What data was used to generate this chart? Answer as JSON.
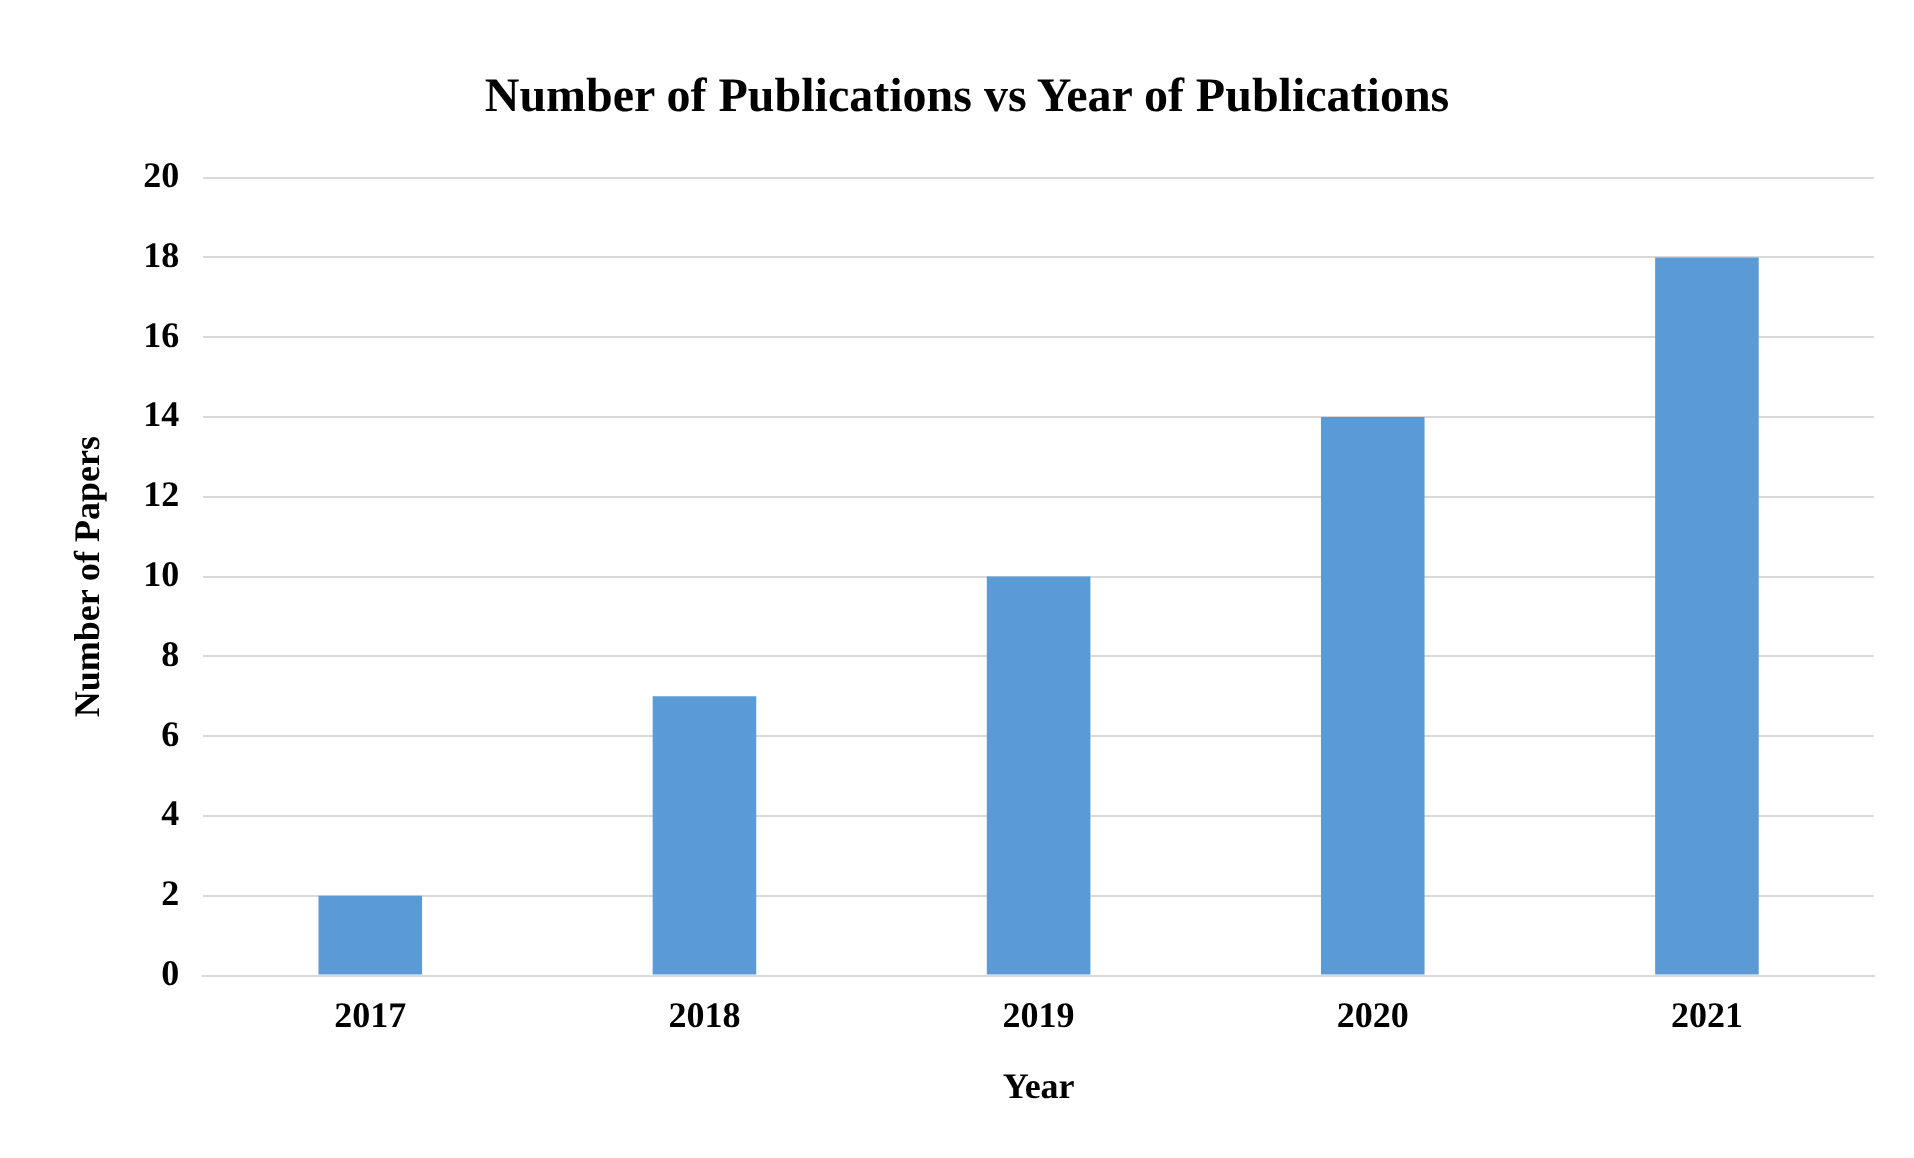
{
  "chart_data": {
    "type": "bar",
    "title": "Number of Publications vs Year of Publications",
    "xlabel": "Year",
    "ylabel": "Number of Papers",
    "categories": [
      "2017",
      "2018",
      "2019",
      "2020",
      "2021"
    ],
    "values": [
      2,
      7,
      10,
      14,
      18
    ],
    "color": "#5b9bd5",
    "ylim": [
      0,
      20
    ],
    "yticks": [
      0,
      2,
      4,
      6,
      8,
      10,
      12,
      14,
      16,
      18,
      20
    ],
    "grid": "y",
    "legend": false
  }
}
